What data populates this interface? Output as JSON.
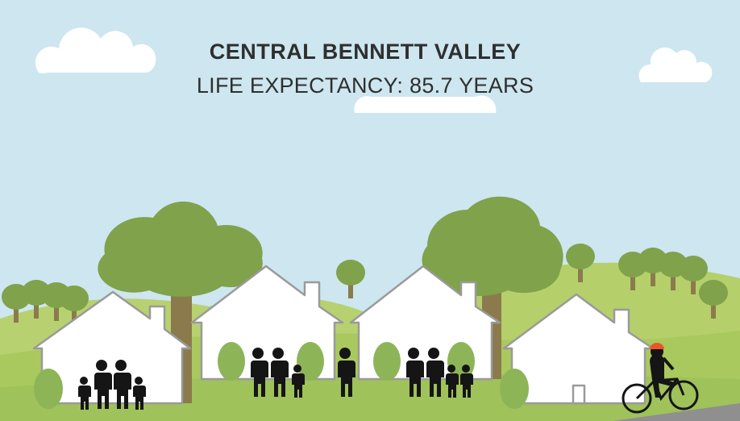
{
  "header": {
    "title": "CENTRAL BENNETT VALLEY",
    "subtitle": "LIFE EXPECTANCY: 85.7 YEARS"
  }
}
